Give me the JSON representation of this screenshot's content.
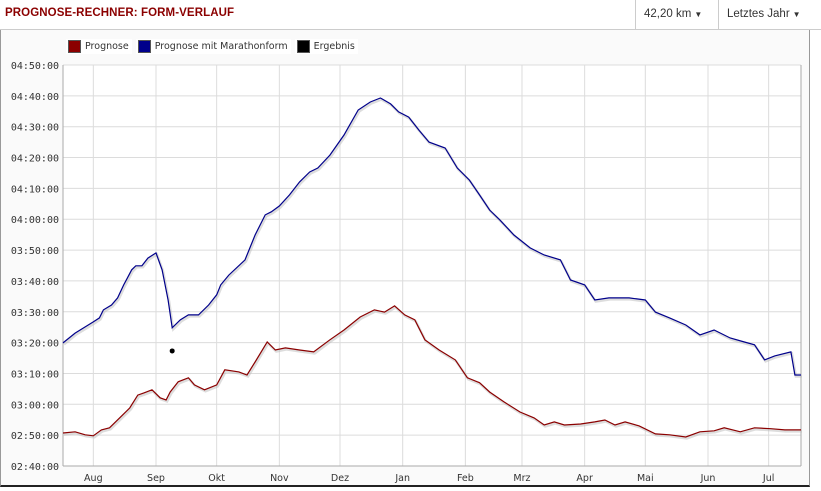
{
  "header": {
    "title": "PROGNOSE-RECHNER: FORM-VERLAUF",
    "distance": "42,20 km",
    "period": "Letztes Jahr"
  },
  "chart_data": {
    "type": "line",
    "title": "PROGNOSE-RECHNER: FORM-VERLAUF",
    "xlabel": "",
    "ylabel": "",
    "x_unit": "days since Aug 1",
    "y_unit": "minutes",
    "xlim": [
      -15,
      350
    ],
    "ylim": [
      160,
      290
    ],
    "grid": true,
    "legend_placement": "top-left",
    "y_ticks": [
      {
        "v": 290,
        "label": "04:50:00"
      },
      {
        "v": 280,
        "label": "04:40:00"
      },
      {
        "v": 270,
        "label": "04:30:00"
      },
      {
        "v": 260,
        "label": "04:20:00"
      },
      {
        "v": 250,
        "label": "04:10:00"
      },
      {
        "v": 240,
        "label": "04:00:00"
      },
      {
        "v": 230,
        "label": "03:50:00"
      },
      {
        "v": 220,
        "label": "03:40:00"
      },
      {
        "v": 210,
        "label": "03:30:00"
      },
      {
        "v": 200,
        "label": "03:20:00"
      },
      {
        "v": 190,
        "label": "03:10:00"
      },
      {
        "v": 180,
        "label": "03:00:00"
      },
      {
        "v": 170,
        "label": "02:50:00"
      },
      {
        "v": 160,
        "label": "02:40:00"
      }
    ],
    "x_ticks": [
      {
        "v": 0,
        "label": "Aug"
      },
      {
        "v": 31,
        "label": "Sep"
      },
      {
        "v": 61,
        "label": "Okt"
      },
      {
        "v": 92,
        "label": "Nov"
      },
      {
        "v": 122,
        "label": "Dez"
      },
      {
        "v": 153,
        "label": "Jan"
      },
      {
        "v": 184,
        "label": "Feb"
      },
      {
        "v": 212,
        "label": "Mrz"
      },
      {
        "v": 243,
        "label": "Apr"
      },
      {
        "v": 273,
        "label": "Mai"
      },
      {
        "v": 304,
        "label": "Jun"
      },
      {
        "v": 334,
        "label": "Jul"
      }
    ],
    "series": [
      {
        "name": "Prognose",
        "color": "#8b0000",
        "type": "line",
        "points": [
          [
            -15,
            170.7
          ],
          [
            -9,
            171.1
          ],
          [
            -4,
            170.1
          ],
          [
            0,
            169.8
          ],
          [
            4,
            171.7
          ],
          [
            8,
            172.4
          ],
          [
            13,
            175.6
          ],
          [
            18,
            178.8
          ],
          [
            22,
            183.0
          ],
          [
            25,
            183.7
          ],
          [
            29,
            184.7
          ],
          [
            33,
            182.1
          ],
          [
            36,
            181.4
          ],
          [
            38,
            184.0
          ],
          [
            42,
            187.3
          ],
          [
            47,
            188.6
          ],
          [
            50,
            186.3
          ],
          [
            55,
            184.7
          ],
          [
            61,
            186.3
          ],
          [
            65,
            191.2
          ],
          [
            72,
            190.5
          ],
          [
            76,
            189.5
          ],
          [
            80,
            193.7
          ],
          [
            86,
            200.2
          ],
          [
            90,
            197.6
          ],
          [
            95,
            198.3
          ],
          [
            102,
            197.6
          ],
          [
            109,
            197.0
          ],
          [
            117,
            200.9
          ],
          [
            124,
            204.1
          ],
          [
            132,
            208.3
          ],
          [
            139,
            210.6
          ],
          [
            144,
            209.9
          ],
          [
            149,
            211.9
          ],
          [
            154,
            209.0
          ],
          [
            159,
            207.4
          ],
          [
            164,
            200.9
          ],
          [
            171,
            197.6
          ],
          [
            179,
            194.4
          ],
          [
            185,
            188.6
          ],
          [
            191,
            187.0
          ],
          [
            196,
            184.0
          ],
          [
            203,
            180.8
          ],
          [
            211,
            177.5
          ],
          [
            218,
            175.6
          ],
          [
            223,
            173.3
          ],
          [
            228,
            174.3
          ],
          [
            233,
            173.3
          ],
          [
            241,
            173.6
          ],
          [
            248,
            174.3
          ],
          [
            253,
            174.9
          ],
          [
            258,
            173.3
          ],
          [
            263,
            174.3
          ],
          [
            270,
            173.0
          ],
          [
            278,
            170.4
          ],
          [
            285,
            170.1
          ],
          [
            293,
            169.4
          ],
          [
            300,
            171.1
          ],
          [
            307,
            171.4
          ],
          [
            312,
            172.4
          ],
          [
            320,
            171.1
          ],
          [
            327,
            172.4
          ],
          [
            335,
            172.1
          ],
          [
            342,
            171.7
          ],
          [
            350,
            171.7
          ]
        ]
      },
      {
        "name": "Prognose mit Marathonform",
        "color": "#00008b",
        "type": "line",
        "points": [
          [
            -15,
            199.9
          ],
          [
            -9,
            203.1
          ],
          [
            -4,
            205.1
          ],
          [
            0,
            206.7
          ],
          [
            3,
            208.0
          ],
          [
            5,
            210.6
          ],
          [
            9,
            212.2
          ],
          [
            12,
            214.5
          ],
          [
            15,
            218.7
          ],
          [
            19,
            223.6
          ],
          [
            21,
            224.9
          ],
          [
            24,
            224.9
          ],
          [
            27,
            227.4
          ],
          [
            31,
            229.1
          ],
          [
            34,
            223.6
          ],
          [
            37,
            213.8
          ],
          [
            39,
            204.8
          ],
          [
            43,
            207.4
          ],
          [
            47,
            209.0
          ],
          [
            52,
            209.0
          ],
          [
            57,
            212.2
          ],
          [
            61,
            215.5
          ],
          [
            63,
            218.7
          ],
          [
            67,
            221.9
          ],
          [
            75,
            226.8
          ],
          [
            80,
            234.9
          ],
          [
            85,
            241.4
          ],
          [
            88,
            242.4
          ],
          [
            92,
            244.3
          ],
          [
            97,
            247.9
          ],
          [
            102,
            252.1
          ],
          [
            107,
            255.3
          ],
          [
            111,
            256.6
          ],
          [
            117,
            260.8
          ],
          [
            124,
            267.3
          ],
          [
            131,
            275.4
          ],
          [
            137,
            278.0
          ],
          [
            142,
            279.3
          ],
          [
            147,
            277.4
          ],
          [
            151,
            274.8
          ],
          [
            156,
            273.1
          ],
          [
            161,
            268.9
          ],
          [
            166,
            265.0
          ],
          [
            174,
            263.1
          ],
          [
            180,
            256.6
          ],
          [
            186,
            252.7
          ],
          [
            191,
            247.9
          ],
          [
            196,
            243.0
          ],
          [
            201,
            239.8
          ],
          [
            208,
            234.9
          ],
          [
            216,
            230.7
          ],
          [
            223,
            228.4
          ],
          [
            231,
            226.8
          ],
          [
            236,
            220.3
          ],
          [
            243,
            218.7
          ],
          [
            248,
            213.8
          ],
          [
            255,
            214.5
          ],
          [
            265,
            214.5
          ],
          [
            273,
            213.8
          ],
          [
            278,
            209.9
          ],
          [
            285,
            208.0
          ],
          [
            293,
            205.7
          ],
          [
            300,
            202.5
          ],
          [
            307,
            204.1
          ],
          [
            315,
            201.5
          ],
          [
            322,
            200.2
          ],
          [
            327,
            199.3
          ],
          [
            332,
            194.4
          ],
          [
            337,
            195.7
          ],
          [
            345,
            197.0
          ],
          [
            347,
            189.5
          ],
          [
            350,
            189.5
          ]
        ]
      },
      {
        "name": "Ergebnis",
        "color": "#000000",
        "type": "scatter",
        "points": [
          [
            39,
            197.3
          ]
        ]
      }
    ]
  }
}
